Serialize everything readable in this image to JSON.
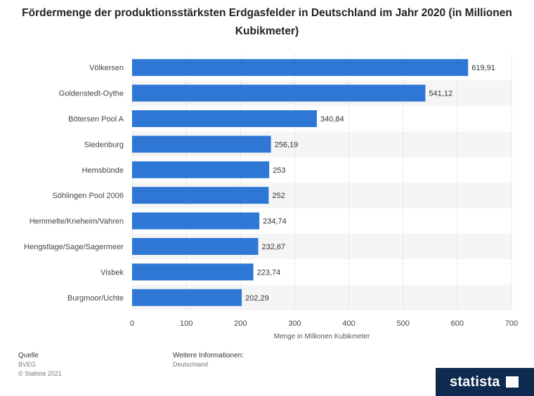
{
  "title": "Fördermenge der produktionsstärksten Erdgasfelder in Deutschland im Jahr 2020 (in Millionen Kubikmeter)",
  "chart_data": {
    "type": "bar",
    "orientation": "horizontal",
    "categories": [
      "Völkersen",
      "Goldenstedt-Oythe",
      "Bötersen Pool A",
      "Siedenburg",
      "Hemsbünde",
      "Söhlingen Pool 2006",
      "Hemmelte/Kneheim/Vahren",
      "Hengstlage/Sage/Sagermeer",
      "Visbek",
      "Burgmoor/Uchte"
    ],
    "values": [
      619.91,
      541.12,
      340.84,
      256.19,
      253,
      252,
      234.74,
      232.67,
      223.74,
      202.29
    ],
    "value_labels": [
      "619,91",
      "541,12",
      "340,84",
      "256,19",
      "253",
      "252",
      "234,74",
      "232,67",
      "223,74",
      "202,29"
    ],
    "xlabel": "Menge in Millionen Kubikmeter",
    "xlim": [
      0,
      700
    ],
    "xticks": [
      0,
      100,
      200,
      300,
      400,
      500,
      600,
      700
    ],
    "grid": true,
    "bar_color": "#2f77d4"
  },
  "footer": {
    "source_heading": "Quelle",
    "source_name": "BVEG",
    "copyright": "© Statista 2021",
    "info_heading": "Weitere Informationen:",
    "info_value": "Deutschland"
  },
  "brand": {
    "name": "statista"
  }
}
